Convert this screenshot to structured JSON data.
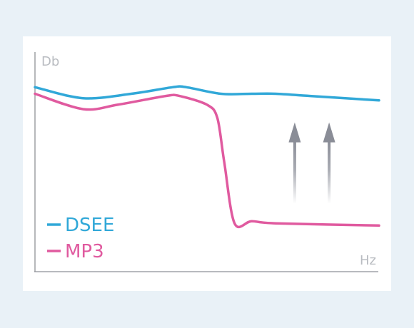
{
  "chart_data": {
    "type": "line",
    "ylabel": "Db",
    "xlabel": "Hz",
    "xlim": [
      0,
      100
    ],
    "ylim": [
      0,
      100
    ],
    "grid": false,
    "legend_position": "bottom-left",
    "series": [
      {
        "name": "DSEE",
        "color": "#31a8d8",
        "x": [
          0,
          14,
          28,
          40,
          44,
          54,
          63,
          70,
          80,
          100
        ],
        "y": [
          84,
          79,
          81,
          84,
          84,
          81,
          81,
          81,
          80,
          78
        ]
      },
      {
        "name": "MP3",
        "color": "#e05a9f",
        "x": [
          0,
          14,
          24,
          38,
          42,
          50,
          53,
          55,
          58,
          63,
          60,
          70,
          100
        ],
        "y": [
          81,
          74,
          76,
          80,
          80,
          76,
          70,
          50,
          22,
          23,
          23,
          22,
          21
        ]
      }
    ],
    "annotations": [
      {
        "type": "arrow-up",
        "color": "#8a8d97",
        "x": 75.5,
        "y_from": 31,
        "y_to": 68
      },
      {
        "type": "arrow-up",
        "color": "#8a8d97",
        "x": 85.5,
        "y_from": 31,
        "y_to": 68
      }
    ]
  }
}
